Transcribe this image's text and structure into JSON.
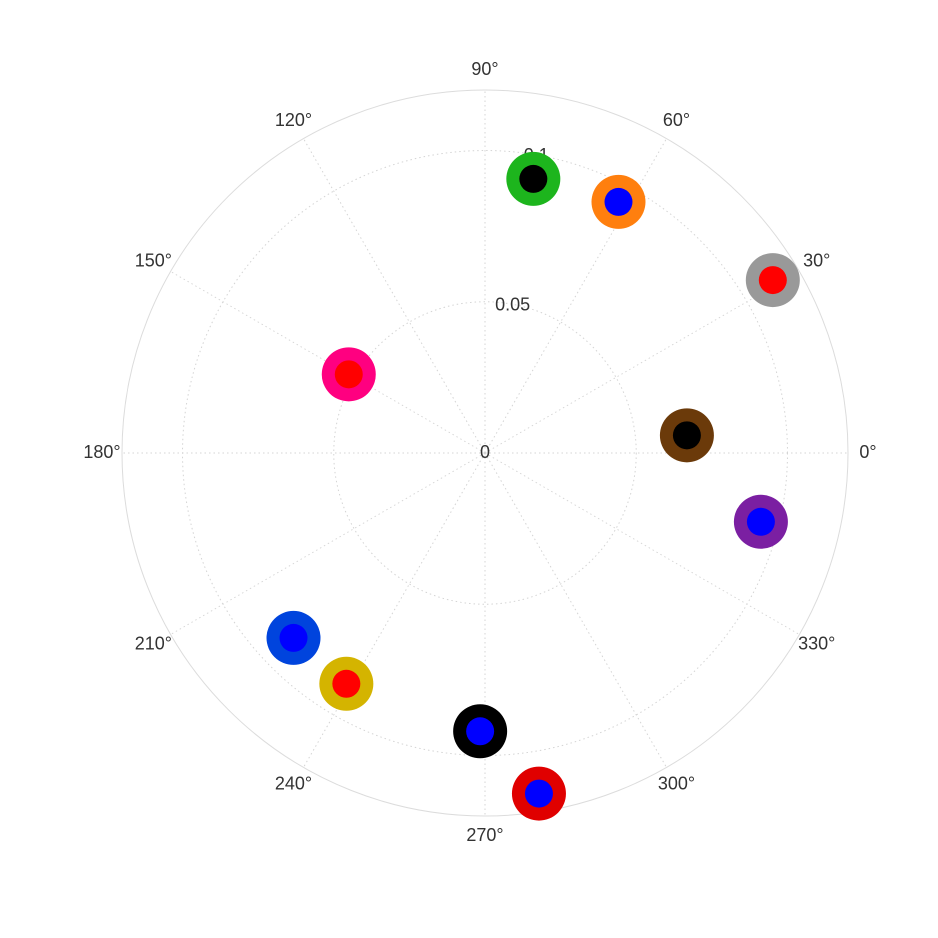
{
  "chart_data": {
    "type": "scatter",
    "projection": "polar",
    "title": "",
    "angle_unit": "degrees",
    "r_range": [
      0,
      0.12
    ],
    "r_ticks": [
      {
        "value": 0,
        "label": "0"
      },
      {
        "value": 0.05,
        "label": "0.05"
      },
      {
        "value": 0.1,
        "label": "0.1"
      }
    ],
    "theta_ticks": [
      {
        "value": 0,
        "label": "0°"
      },
      {
        "value": 30,
        "label": "30°"
      },
      {
        "value": 60,
        "label": "60°"
      },
      {
        "value": 90,
        "label": "90°"
      },
      {
        "value": 120,
        "label": "120°"
      },
      {
        "value": 150,
        "label": "150°"
      },
      {
        "value": 180,
        "label": "180°"
      },
      {
        "value": 210,
        "label": "210°"
      },
      {
        "value": 240,
        "label": "240°"
      },
      {
        "value": 270,
        "label": "270°"
      },
      {
        "value": 300,
        "label": "300°"
      },
      {
        "value": 330,
        "label": "330°"
      }
    ],
    "grid": true,
    "legend": "none",
    "points": [
      {
        "theta": 80,
        "r": 0.092,
        "outer_color": "#1db51d",
        "inner_color": "#000000"
      },
      {
        "theta": 62,
        "r": 0.094,
        "outer_color": "#ff7f0e",
        "inner_color": "#0000ff"
      },
      {
        "theta": 31,
        "r": 0.111,
        "outer_color": "#999999",
        "inner_color": "#ff0000"
      },
      {
        "theta": 5,
        "r": 0.067,
        "outer_color": "#6b3a0a",
        "inner_color": "#000000"
      },
      {
        "theta": 346,
        "r": 0.094,
        "outer_color": "#7b1fa2",
        "inner_color": "#0000ff"
      },
      {
        "theta": 150,
        "r": 0.052,
        "outer_color": "#ff0080",
        "inner_color": "#ff0000"
      },
      {
        "theta": 224,
        "r": 0.088,
        "outer_color": "#0044dd",
        "inner_color": "#0000ff"
      },
      {
        "theta": 239,
        "r": 0.089,
        "outer_color": "#d4b400",
        "inner_color": "#ff0000"
      },
      {
        "theta": 269,
        "r": 0.092,
        "outer_color": "#000000",
        "inner_color": "#0000ff"
      },
      {
        "theta": 279,
        "r": 0.114,
        "outer_color": "#e00000",
        "inner_color": "#0000ff"
      }
    ]
  }
}
